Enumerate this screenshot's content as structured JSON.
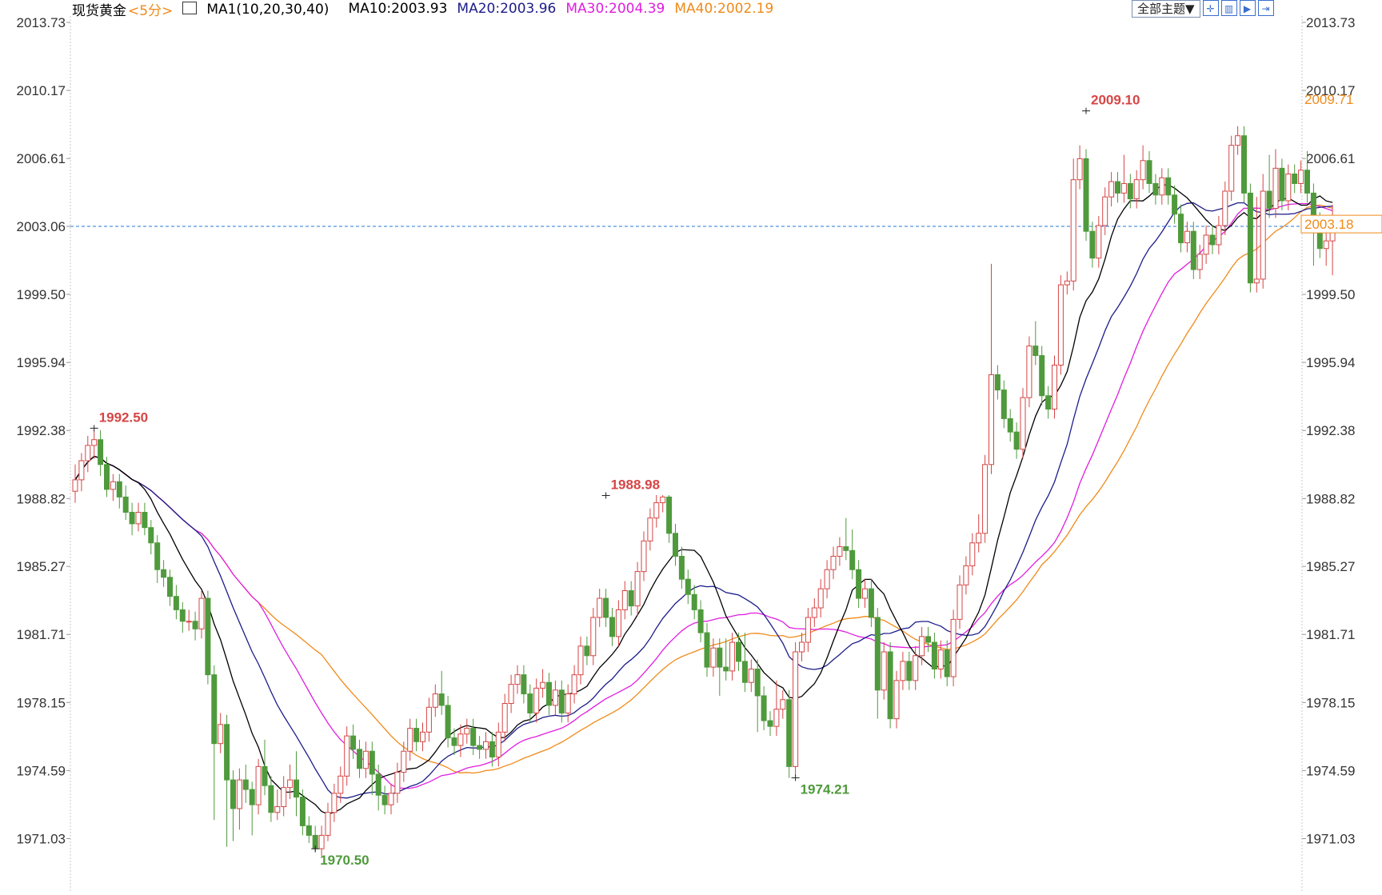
{
  "header": {
    "symbol": "现货黄金",
    "period": "<5分>",
    "ma_label": "MA1(10,20,30,40)",
    "ma10": "MA10:2003.93",
    "ma20": "MA20:2003.96",
    "ma30": "MA30:2004.39",
    "ma40": "MA40:2002.19"
  },
  "toolbar": {
    "theme_label": "全部主题▼",
    "buttons": [
      "crosshair-icon",
      "layout-icon",
      "play-icon",
      "export-icon"
    ]
  },
  "colors": {
    "up": "#d64545",
    "down": "#4f9a3c",
    "ma10": "#000000",
    "ma20": "#1c1c8a",
    "ma30": "#e01ee0",
    "ma40": "#f08a1a",
    "current_line": "#2a78d6",
    "high_label": "#d64545",
    "low_label": "#4f9a3c"
  },
  "chart_data": {
    "type": "candlestick",
    "ylim": [
      1967.5,
      2013.73
    ],
    "y_ticks": [
      "2013.73",
      "2010.17",
      "2006.61",
      "2003.06",
      "1999.50",
      "1995.94",
      "1992.38",
      "1988.82",
      "1985.27",
      "1981.71",
      "1978.15",
      "1974.59",
      "1971.03"
    ],
    "annotations": {
      "high1": "1992.50",
      "low1": "1970.50",
      "high2": "1988.98",
      "low2": "1974.21",
      "high3": "2009.10"
    },
    "right_labels": {
      "ma40_value": "2009.71",
      "current_price": "2003.18"
    },
    "current_line_value": 2003.06,
    "candles": [
      [
        1989.2,
        1989.8,
        1988.6,
        1990.6
      ],
      [
        1989.8,
        1990.8,
        1989.2,
        1991.2
      ],
      [
        1990.8,
        1991.6,
        1990.2,
        1992.1
      ],
      [
        1991.6,
        1991.9,
        1990.9,
        1992.4
      ],
      [
        1991.9,
        1990.6,
        1990.0,
        1992.4
      ],
      [
        1990.6,
        1989.3,
        1988.9,
        1991.0
      ],
      [
        1989.3,
        1989.7,
        1988.7,
        1990.1
      ],
      [
        1989.7,
        1988.9,
        1988.3,
        1990.1
      ],
      [
        1988.9,
        1988.1,
        1987.7,
        1989.5
      ],
      [
        1988.1,
        1987.5,
        1986.9,
        1988.6
      ],
      [
        1987.5,
        1988.1,
        1987.1,
        1988.6
      ],
      [
        1988.1,
        1987.3,
        1986.9,
        1988.6
      ],
      [
        1987.3,
        1986.5,
        1985.9,
        1987.7
      ],
      [
        1986.5,
        1985.1,
        1984.4,
        1986.9
      ],
      [
        1985.1,
        1984.7,
        1984.2,
        1985.6
      ],
      [
        1984.7,
        1983.7,
        1983.2,
        1985.1
      ],
      [
        1983.7,
        1983.0,
        1982.5,
        1984.3
      ],
      [
        1983.0,
        1982.4,
        1981.8,
        1983.4
      ],
      [
        1982.4,
        1982.4,
        1981.9,
        1983.0
      ],
      [
        1982.4,
        1982.0,
        1981.4,
        1982.9
      ],
      [
        1982.0,
        1983.6,
        1981.5,
        1984.0
      ],
      [
        1983.6,
        1979.6,
        1979.1,
        1984.0
      ],
      [
        1979.6,
        1976.0,
        1972.0,
        1980.1
      ],
      [
        1976.0,
        1977.0,
        1975.5,
        1977.6
      ],
      [
        1977.0,
        1974.1,
        1970.6,
        1977.5
      ],
      [
        1974.1,
        1972.6,
        1970.9,
        1974.6
      ],
      [
        1972.6,
        1974.1,
        1971.5,
        1974.7
      ],
      [
        1974.1,
        1973.6,
        1972.9,
        1974.9
      ],
      [
        1973.6,
        1972.8,
        1971.2,
        1974.0
      ],
      [
        1972.8,
        1974.8,
        1972.3,
        1975.2
      ],
      [
        1974.8,
        1973.8,
        1973.3,
        1976.2
      ],
      [
        1973.8,
        1972.4,
        1971.9,
        1974.3
      ],
      [
        1972.4,
        1972.7,
        1972.0,
        1973.6
      ],
      [
        1972.7,
        1973.7,
        1972.2,
        1974.3
      ],
      [
        1973.7,
        1974.1,
        1973.1,
        1974.9
      ],
      [
        1974.1,
        1973.2,
        1972.2,
        1975.6
      ],
      [
        1973.2,
        1971.7,
        1971.2,
        1973.6
      ],
      [
        1971.7,
        1971.2,
        1970.8,
        1972.2
      ],
      [
        1971.2,
        1970.5,
        1970.3,
        1971.7
      ],
      [
        1970.5,
        1971.2,
        1970.1,
        1971.7
      ],
      [
        1971.2,
        1972.4,
        1970.9,
        1972.9
      ],
      [
        1972.4,
        1973.4,
        1971.9,
        1973.9
      ],
      [
        1973.4,
        1974.3,
        1972.9,
        1974.8
      ],
      [
        1974.3,
        1976.4,
        1973.8,
        1976.9
      ],
      [
        1976.4,
        1975.7,
        1975.2,
        1977.0
      ],
      [
        1975.7,
        1974.7,
        1974.2,
        1976.2
      ],
      [
        1974.7,
        1975.6,
        1974.2,
        1976.1
      ],
      [
        1975.6,
        1974.4,
        1973.3,
        1976.1
      ],
      [
        1974.4,
        1973.3,
        1972.5,
        1974.9
      ],
      [
        1973.3,
        1972.8,
        1972.3,
        1973.8
      ],
      [
        1972.8,
        1973.4,
        1972.3,
        1973.9
      ],
      [
        1973.4,
        1974.5,
        1972.9,
        1975.0
      ],
      [
        1974.5,
        1975.6,
        1974.0,
        1976.1
      ],
      [
        1975.6,
        1976.8,
        1975.1,
        1977.3
      ],
      [
        1976.8,
        1976.1,
        1975.6,
        1977.3
      ],
      [
        1976.1,
        1976.6,
        1975.6,
        1977.1
      ],
      [
        1976.6,
        1977.9,
        1976.1,
        1978.4
      ],
      [
        1977.9,
        1978.6,
        1977.4,
        1979.1
      ],
      [
        1978.6,
        1978.0,
        1977.5,
        1979.8
      ],
      [
        1978.0,
        1976.3,
        1975.8,
        1978.5
      ],
      [
        1976.3,
        1975.9,
        1975.4,
        1976.8
      ],
      [
        1975.9,
        1976.5,
        1975.3,
        1977.0
      ],
      [
        1976.5,
        1976.8,
        1976.0,
        1977.3
      ],
      [
        1976.8,
        1975.9,
        1975.4,
        1977.3
      ],
      [
        1975.9,
        1975.7,
        1975.2,
        1976.4
      ],
      [
        1975.7,
        1976.1,
        1975.2,
        1976.6
      ],
      [
        1976.1,
        1975.3,
        1974.8,
        1976.6
      ],
      [
        1975.3,
        1976.6,
        1974.8,
        1977.1
      ],
      [
        1976.6,
        1978.1,
        1976.1,
        1978.6
      ],
      [
        1978.1,
        1979.1,
        1977.6,
        1979.6
      ],
      [
        1979.1,
        1979.6,
        1978.6,
        1980.1
      ],
      [
        1979.6,
        1978.6,
        1978.1,
        1980.1
      ],
      [
        1978.6,
        1977.6,
        1977.1,
        1979.1
      ],
      [
        1977.6,
        1978.9,
        1977.1,
        1979.4
      ],
      [
        1978.9,
        1979.2,
        1978.4,
        1979.9
      ],
      [
        1979.2,
        1978.0,
        1977.5,
        1979.7
      ],
      [
        1978.0,
        1978.8,
        1977.5,
        1979.3
      ],
      [
        1978.8,
        1977.6,
        1977.1,
        1979.3
      ],
      [
        1977.6,
        1978.6,
        1977.1,
        1979.1
      ],
      [
        1978.6,
        1979.6,
        1978.1,
        1980.1
      ],
      [
        1979.6,
        1981.1,
        1979.1,
        1981.6
      ],
      [
        1981.1,
        1980.6,
        1980.1,
        1981.6
      ],
      [
        1980.6,
        1982.6,
        1980.1,
        1983.1
      ],
      [
        1982.6,
        1983.6,
        1982.1,
        1984.1
      ],
      [
        1983.6,
        1982.6,
        1982.1,
        1984.1
      ],
      [
        1982.6,
        1981.6,
        1981.1,
        1983.1
      ],
      [
        1981.6,
        1983.0,
        1981.1,
        1983.5
      ],
      [
        1983.0,
        1984.0,
        1982.5,
        1984.5
      ],
      [
        1984.0,
        1983.2,
        1982.7,
        1984.5
      ],
      [
        1983.2,
        1985.0,
        1982.7,
        1985.5
      ],
      [
        1985.0,
        1986.6,
        1984.5,
        1987.1
      ],
      [
        1986.6,
        1987.8,
        1986.1,
        1988.3
      ],
      [
        1987.8,
        1988.6,
        1987.3,
        1989.0
      ],
      [
        1988.6,
        1988.9,
        1988.1,
        1989.0
      ],
      [
        1988.9,
        1987.0,
        1986.5,
        1989.0
      ],
      [
        1987.0,
        1985.8,
        1985.3,
        1987.5
      ],
      [
        1985.8,
        1984.6,
        1984.1,
        1986.3
      ],
      [
        1984.6,
        1983.8,
        1983.3,
        1985.1
      ],
      [
        1983.8,
        1983.0,
        1982.5,
        1984.3
      ],
      [
        1983.0,
        1981.8,
        1981.3,
        1983.5
      ],
      [
        1981.8,
        1980.0,
        1979.5,
        1982.3
      ],
      [
        1980.0,
        1981.0,
        1979.5,
        1981.5
      ],
      [
        1981.0,
        1980.0,
        1978.5,
        1981.5
      ],
      [
        1980.0,
        1979.8,
        1979.3,
        1981.5
      ],
      [
        1979.8,
        1981.3,
        1979.3,
        1981.8
      ],
      [
        1981.3,
        1980.3,
        1979.8,
        1981.8
      ],
      [
        1980.3,
        1979.2,
        1978.7,
        1981.8
      ],
      [
        1979.2,
        1979.9,
        1978.7,
        1980.4
      ],
      [
        1979.9,
        1978.5,
        1976.6,
        1980.4
      ],
      [
        1978.5,
        1977.2,
        1976.7,
        1979.0
      ],
      [
        1977.2,
        1976.9,
        1976.4,
        1977.7
      ],
      [
        1976.9,
        1977.8,
        1976.4,
        1979.3
      ],
      [
        1977.8,
        1978.3,
        1977.3,
        1978.8
      ],
      [
        1978.3,
        1974.8,
        1974.2,
        1978.8
      ],
      [
        1974.8,
        1980.8,
        1974.3,
        1981.3
      ],
      [
        1980.8,
        1981.3,
        1980.3,
        1981.8
      ],
      [
        1981.3,
        1982.6,
        1980.8,
        1983.1
      ],
      [
        1982.6,
        1983.1,
        1982.1,
        1983.6
      ],
      [
        1983.1,
        1984.1,
        1982.6,
        1984.6
      ],
      [
        1984.1,
        1985.1,
        1983.6,
        1985.6
      ],
      [
        1985.1,
        1985.8,
        1984.6,
        1986.3
      ],
      [
        1985.8,
        1986.3,
        1985.3,
        1986.8
      ],
      [
        1986.3,
        1986.1,
        1985.6,
        1987.8
      ],
      [
        1986.1,
        1985.1,
        1984.6,
        1987.2
      ],
      [
        1985.1,
        1983.6,
        1983.1,
        1985.6
      ],
      [
        1983.6,
        1984.1,
        1983.1,
        1984.6
      ],
      [
        1984.1,
        1982.6,
        1982.1,
        1984.6
      ],
      [
        1982.6,
        1978.8,
        1977.3,
        1983.1
      ],
      [
        1978.8,
        1980.8,
        1978.3,
        1981.3
      ],
      [
        1980.8,
        1977.3,
        1976.8,
        1981.3
      ],
      [
        1977.3,
        1979.3,
        1976.8,
        1979.8
      ],
      [
        1979.3,
        1980.3,
        1978.8,
        1980.8
      ],
      [
        1980.3,
        1979.3,
        1978.8,
        1980.8
      ],
      [
        1979.3,
        1980.6,
        1978.8,
        1981.1
      ],
      [
        1980.6,
        1981.6,
        1980.1,
        1982.1
      ],
      [
        1981.6,
        1981.3,
        1980.8,
        1982.1
      ],
      [
        1981.3,
        1979.9,
        1979.4,
        1981.8
      ],
      [
        1979.9,
        1980.9,
        1979.4,
        1981.4
      ],
      [
        1980.9,
        1979.5,
        1979.0,
        1981.4
      ],
      [
        1979.5,
        1982.5,
        1979.0,
        1983.0
      ],
      [
        1982.5,
        1984.3,
        1982.0,
        1984.8
      ],
      [
        1984.3,
        1985.3,
        1983.8,
        1985.8
      ],
      [
        1985.3,
        1986.5,
        1984.8,
        1987.0
      ],
      [
        1986.5,
        1987.0,
        1986.0,
        1988.0
      ],
      [
        1987.0,
        1990.6,
        1986.5,
        1991.1
      ],
      [
        1990.6,
        1995.3,
        1990.1,
        2001.1
      ],
      [
        1995.3,
        1994.5,
        1994.0,
        1995.8
      ],
      [
        1994.5,
        1993.0,
        1992.5,
        1995.0
      ],
      [
        1993.0,
        1992.3,
        1991.8,
        1993.5
      ],
      [
        1992.3,
        1991.4,
        1990.9,
        1992.8
      ],
      [
        1991.4,
        1994.1,
        1990.9,
        1994.6
      ],
      [
        1994.1,
        1996.8,
        1993.6,
        1997.3
      ],
      [
        1996.8,
        1996.3,
        1995.8,
        1998.1
      ],
      [
        1996.3,
        1994.2,
        1993.7,
        1996.8
      ],
      [
        1994.2,
        1993.5,
        1993.0,
        1994.7
      ],
      [
        1993.5,
        1995.8,
        1993.0,
        1996.3
      ],
      [
        1995.8,
        2000.0,
        1995.3,
        2000.5
      ],
      [
        2000.0,
        2000.2,
        1999.5,
        2000.7
      ],
      [
        2000.2,
        2005.5,
        1999.7,
        2006.6
      ],
      [
        2005.5,
        2006.6,
        2005.0,
        2007.3
      ],
      [
        2006.6,
        2002.8,
        2002.3,
        2007.1
      ],
      [
        2002.8,
        2001.4,
        2000.9,
        2003.3
      ],
      [
        2001.4,
        2003.1,
        2000.9,
        2003.6
      ],
      [
        2003.1,
        2004.6,
        2002.6,
        2005.1
      ],
      [
        2004.6,
        2005.4,
        2004.1,
        2005.9
      ],
      [
        2005.4,
        2004.8,
        2004.3,
        2005.9
      ],
      [
        2004.8,
        2005.3,
        2004.3,
        2006.8
      ],
      [
        2005.3,
        2004.5,
        2004.0,
        2005.8
      ],
      [
        2004.5,
        2005.5,
        2004.0,
        2006.0
      ],
      [
        2005.5,
        2006.5,
        2005.0,
        2007.3
      ],
      [
        2006.5,
        2005.3,
        2004.8,
        2007.0
      ],
      [
        2005.3,
        2004.7,
        2004.2,
        2005.8
      ],
      [
        2004.7,
        2005.6,
        2004.2,
        2006.1
      ],
      [
        2005.6,
        2004.7,
        2004.2,
        2006.1
      ],
      [
        2004.7,
        2003.7,
        2003.2,
        2005.2
      ],
      [
        2003.7,
        2002.2,
        2001.7,
        2004.2
      ],
      [
        2002.2,
        2002.8,
        2001.7,
        2003.3
      ],
      [
        2002.8,
        2000.8,
        2000.3,
        2003.3
      ],
      [
        2000.8,
        2001.6,
        2000.3,
        2002.1
      ],
      [
        2001.6,
        2002.6,
        2001.1,
        2003.1
      ],
      [
        2002.6,
        2002.1,
        2001.6,
        2003.1
      ],
      [
        2002.1,
        2003.1,
        2001.6,
        2003.6
      ],
      [
        2003.1,
        2004.9,
        2002.6,
        2005.4
      ],
      [
        2004.9,
        2007.3,
        2004.4,
        2007.8
      ],
      [
        2007.3,
        2007.8,
        2006.8,
        2008.3
      ],
      [
        2007.8,
        2004.8,
        2004.3,
        2008.3
      ],
      [
        2004.8,
        2000.1,
        1999.6,
        2005.3
      ],
      [
        2000.1,
        2000.3,
        1999.6,
        2004.6
      ],
      [
        2000.3,
        2004.9,
        1999.8,
        2005.8
      ],
      [
        2004.9,
        2004.0,
        2003.5,
        2006.8
      ],
      [
        2004.0,
        2006.1,
        2003.5,
        2007.1
      ],
      [
        2006.1,
        2004.4,
        2003.9,
        2006.6
      ],
      [
        2004.4,
        2005.8,
        2003.9,
        2006.3
      ],
      [
        2005.8,
        2005.3,
        2004.8,
        2006.3
      ],
      [
        2005.3,
        2006.0,
        2004.8,
        2006.5
      ],
      [
        2006.0,
        2004.8,
        2004.3,
        2007.0
      ],
      [
        2004.8,
        2003.3,
        2001.0,
        2005.3
      ],
      [
        2003.3,
        2001.9,
        2001.4,
        2003.8
      ],
      [
        2001.9,
        2002.3,
        2001.0,
        2003.1
      ],
      [
        2002.3,
        2003.2,
        2000.5,
        2004.2
      ]
    ]
  }
}
